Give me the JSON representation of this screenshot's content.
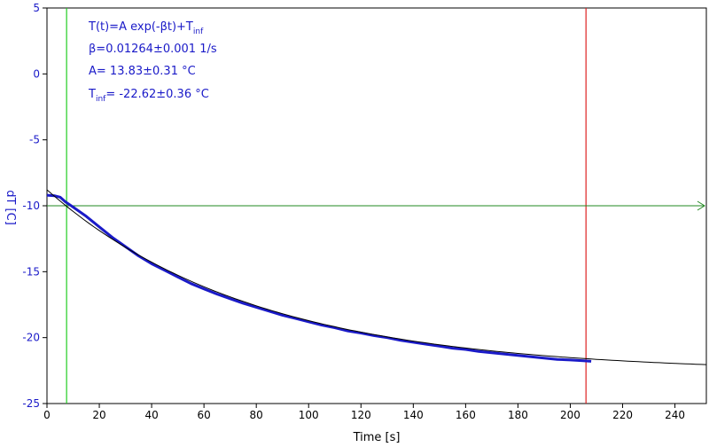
{
  "chart_data": {
    "type": "line",
    "xlabel": "Time [s]",
    "ylabel": "dT [C]",
    "xlim": [
      0,
      252
    ],
    "ylim": [
      -25,
      5
    ],
    "x_ticks": [
      0,
      20,
      40,
      60,
      80,
      100,
      120,
      140,
      160,
      180,
      200,
      220,
      240
    ],
    "y_ticks": [
      5,
      0,
      -5,
      -10,
      -15,
      -20,
      -25
    ],
    "grid": false,
    "annotations": {
      "model": {
        "main": "T(t)=A exp(-βt)+T",
        "sub": "inf"
      },
      "beta": "β=0.01264±0.001 1/s",
      "amp": "A= 13.83±0.31 °C",
      "tinf": {
        "main": "T",
        "sub": "inf",
        "rest": "= -22.62±0.36 °C"
      }
    },
    "fit": {
      "A": 13.83,
      "beta": 0.01264,
      "T_inf": -22.62,
      "x_range": [
        0,
        252
      ]
    },
    "measured": {
      "x": [
        0,
        3,
        5,
        7,
        10,
        15,
        20,
        25,
        30,
        35,
        40,
        45,
        50,
        55,
        60,
        65,
        70,
        75,
        80,
        85,
        90,
        95,
        100,
        105,
        110,
        115,
        120,
        125,
        130,
        135,
        140,
        145,
        150,
        155,
        160,
        165,
        170,
        175,
        180,
        185,
        190,
        195,
        200,
        205,
        208
      ],
      "y": [
        -9.2,
        -9.25,
        -9.35,
        -9.7,
        -10.1,
        -10.8,
        -11.6,
        -12.4,
        -13.1,
        -13.8,
        -14.4,
        -14.9,
        -15.4,
        -15.9,
        -16.3,
        -16.7,
        -17.05,
        -17.4,
        -17.7,
        -18.0,
        -18.3,
        -18.55,
        -18.8,
        -19.05,
        -19.25,
        -19.5,
        -19.65,
        -19.85,
        -20.0,
        -20.2,
        -20.35,
        -20.5,
        -20.65,
        -20.8,
        -20.9,
        -21.05,
        -21.15,
        -21.25,
        -21.35,
        -21.45,
        -21.55,
        -21.65,
        -21.7,
        -21.75,
        -21.8
      ],
      "color": "#1a1ac8"
    },
    "markers": {
      "vertical_green_x": 7.5,
      "vertical_red_x": 206,
      "horizontal_green_y": -10,
      "green": "#22cc22",
      "red": "#dd2222",
      "dark_green": "#228822"
    },
    "colors": {
      "axis_y": "#1a1ac8",
      "axis_x": "#000000",
      "fit": "#000000"
    }
  }
}
